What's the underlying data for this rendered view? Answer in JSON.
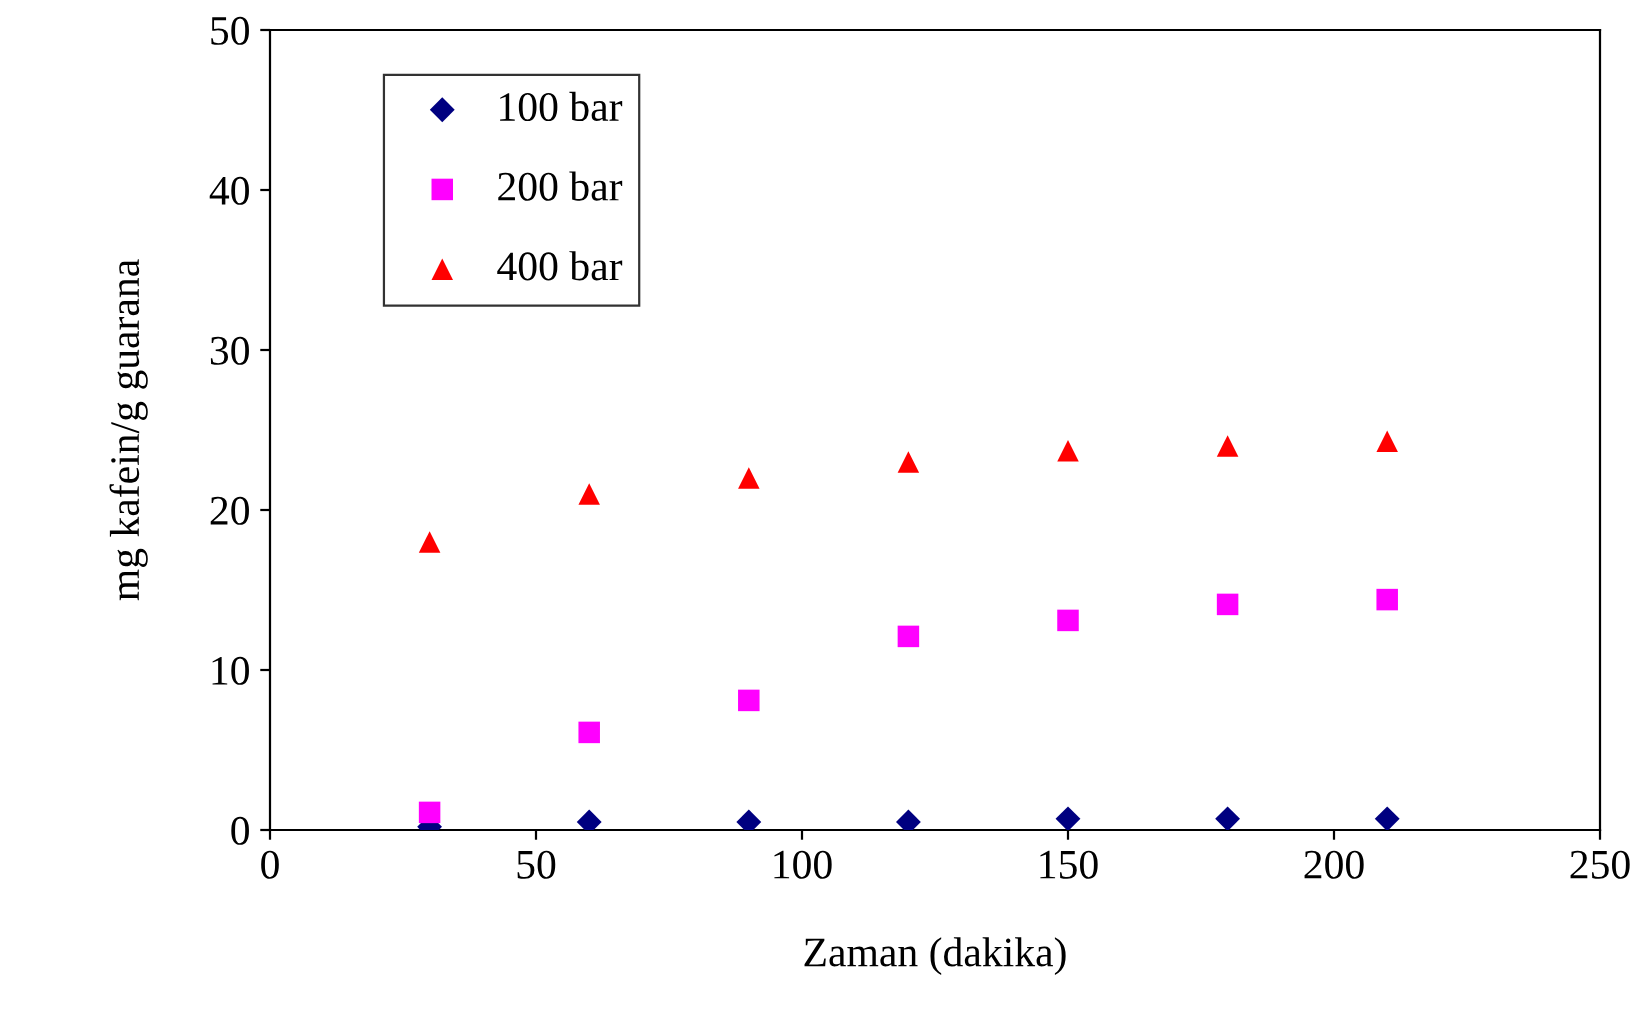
{
  "chart_data": {
    "type": "scatter",
    "xlabel": "Zaman (dakika)",
    "ylabel": "mg kafein/g guarana",
    "x": [
      30,
      60,
      90,
      120,
      150,
      180,
      210
    ],
    "xlim": [
      0,
      250
    ],
    "xticks": [
      0,
      50,
      100,
      150,
      200,
      250
    ],
    "ylim": [
      0,
      50
    ],
    "yticks": [
      0,
      10,
      20,
      30,
      40,
      50
    ],
    "grid": false,
    "legend": "top left",
    "series": [
      {
        "name": "100 bar",
        "color": "#000080",
        "marker": "diamond",
        "values": [
          0.2,
          0.5,
          0.5,
          0.5,
          0.7,
          0.7,
          0.7
        ]
      },
      {
        "name": "200 bar",
        "color": "#ff00ff",
        "marker": "square",
        "values": [
          1.1,
          6.1,
          8.1,
          12.1,
          13.1,
          14.1,
          14.4
        ]
      },
      {
        "name": "400 bar",
        "color": "#ff0000",
        "marker": "triangle",
        "values": [
          18,
          21,
          22,
          23,
          23.7,
          24,
          24.3
        ]
      }
    ]
  }
}
